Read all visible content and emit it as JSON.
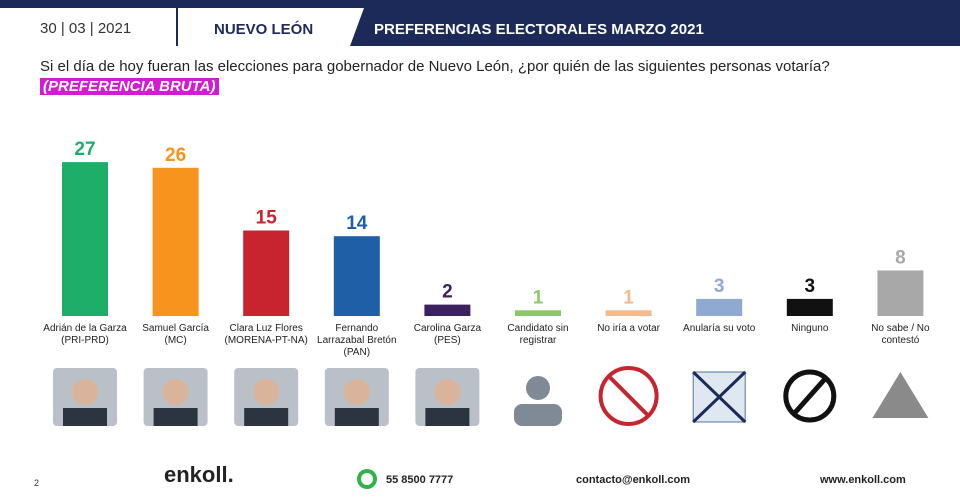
{
  "header": {
    "date": "30 | 03 | 2021",
    "region": "NUEVO LEÓN",
    "banner": "PREFERENCIAS ELECTORALES MARZO 2021"
  },
  "chart_data": {
    "type": "bar",
    "title": "Si el día de hoy fueran las elecciones para gobernador de Nuevo León, ¿por quién de las siguientes personas votaría?",
    "subtitle": "(PREFERENCIA BRUTA)",
    "categories": [
      "Adrián de la Garza\n(PRI-PRD)",
      "Samuel García\n(MC)",
      "Clara Luz Flores\n(MORENA-PT-NA)",
      "Fernando\nLarrazabal Bretón\n(PAN)",
      "Carolina Garza\n(PES)",
      "Candidato sin\nregistrar",
      "No iría a votar",
      "Anularía su voto",
      "Ninguno",
      "No sabe / No\ncontestó"
    ],
    "values": [
      27,
      26,
      15,
      14,
      2,
      1,
      1,
      3,
      3,
      8
    ],
    "colors": [
      "#1fae6a",
      "#f7941d",
      "#c8242f",
      "#1f5fa8",
      "#3b2160",
      "#8cc86a",
      "#f4b98c",
      "#8eaad0",
      "#111111",
      "#a8a8a8"
    ]
  },
  "footer": {
    "page": "2",
    "brand": "enkoll.",
    "phone": "55 8500 7777",
    "email": "contacto@enkoll.com",
    "web": "www.enkoll.com"
  }
}
